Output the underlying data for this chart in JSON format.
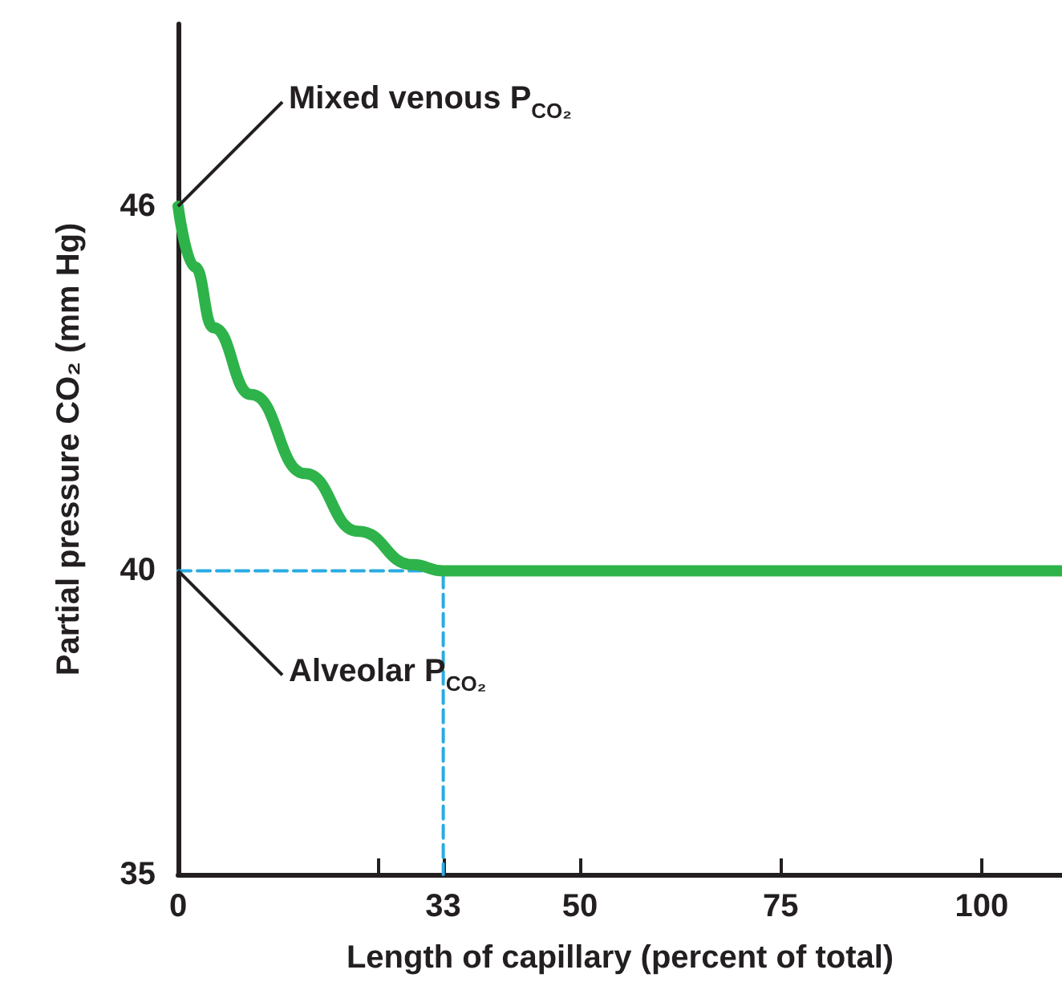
{
  "chart_data": {
    "type": "line",
    "xlabel": "Length of capillary (percent of total)",
    "ylabel": "Partial pressure CO₂ (mm Hg)",
    "xlim": [
      0,
      110
    ],
    "xticks": [
      0,
      {
        "value": 25,
        "label": null
      },
      33,
      50,
      75,
      100
    ],
    "ylim": [
      35,
      49
    ],
    "yticks": [
      35,
      40,
      46
    ],
    "marker": "none",
    "series": [
      {
        "color": "#2db34a",
        "x": [
          0,
          2.1,
          4.4,
          9.1,
          15.8,
          22.4,
          29.2,
          33,
          110
        ],
        "values": [
          46,
          45,
          44,
          42.9,
          41.6,
          40.65,
          40.1,
          40,
          40
        ]
      },
      {
        "color": "#29abe2",
        "line_style": "dashed",
        "x": [
          0,
          33,
          33
        ],
        "values": [
          40,
          40,
          35
        ]
      }
    ],
    "annotations": [
      {
        "text": "Mixed venous P$_{CO₂}$",
        "x": 0,
        "y": 46
      },
      {
        "text": "Alveolar P$_{CO₂}$",
        "x": 0,
        "y": 40
      }
    ]
  }
}
